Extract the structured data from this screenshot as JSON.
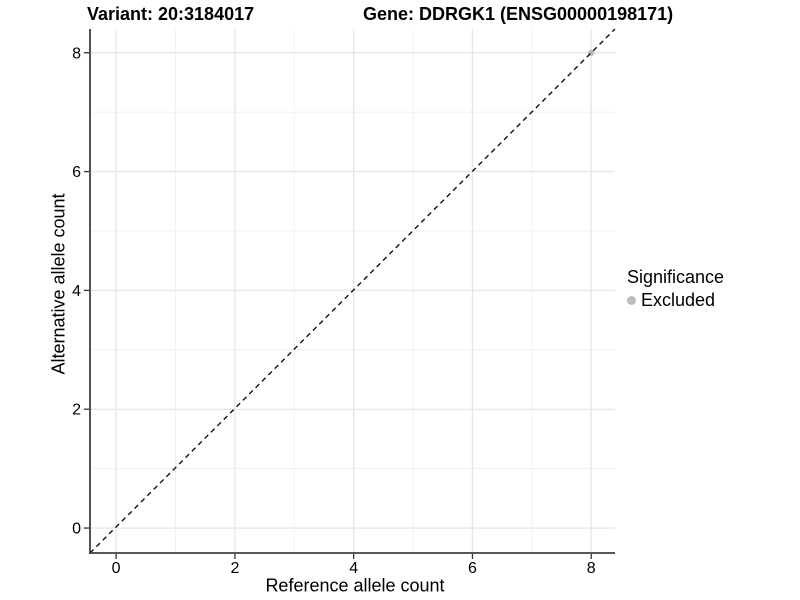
{
  "chart_data": {
    "type": "scatter",
    "titles": [
      "Variant: 20:3184017",
      "Gene: DDRGK1 (ENSG00000198171)"
    ],
    "xlabel": "Reference allele count",
    "ylabel": "Alternative allele count",
    "xlim": [
      -0.44,
      8.4
    ],
    "ylim": [
      -0.42,
      8.4
    ],
    "x_ticks": [
      0,
      2,
      4,
      6,
      8
    ],
    "y_ticks": [
      0,
      2,
      4,
      6,
      8
    ],
    "x_minor_ticks": [
      1,
      3,
      5,
      7
    ],
    "y_minor_ticks": [
      1,
      3,
      5,
      7
    ],
    "grid": true,
    "reference_line": {
      "kind": "identity",
      "style": "dashed",
      "color": "#111111"
    },
    "series": [
      {
        "name": "Excluded",
        "color": "#bdbdbd",
        "points": [
          [
            8,
            8
          ]
        ]
      }
    ],
    "legend": {
      "title": "Significance",
      "position": "right",
      "items": [
        {
          "label": "Excluded",
          "color": "#bdbdbd"
        }
      ]
    },
    "colors": {
      "grid_major": "#e6e6e6",
      "grid_minor": "#f1f1f1",
      "axis_line": "#3f3f3f",
      "tick_mark": "#333333",
      "tick_label": "#000000"
    }
  }
}
